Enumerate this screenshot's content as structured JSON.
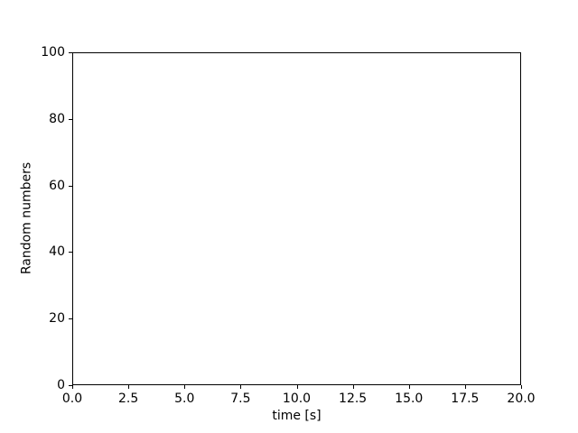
{
  "colors": {
    "background": "#ffffff",
    "spine": "#000000",
    "text": "#000000"
  },
  "chart_data": {
    "type": "line",
    "title": "",
    "xlabel": "time [s]",
    "ylabel": "Random numbers",
    "xlim": [
      0,
      20
    ],
    "ylim": [
      0,
      100
    ],
    "xticks": [
      0,
      2.5,
      5,
      7.5,
      10,
      12.5,
      15,
      17.5,
      20
    ],
    "xtick_labels": [
      "0.0",
      "2.5",
      "5.0",
      "7.5",
      "10.0",
      "12.5",
      "15.0",
      "17.5",
      "20.0"
    ],
    "yticks": [
      0,
      20,
      40,
      60,
      80,
      100
    ],
    "ytick_labels": [
      "0",
      "20",
      "40",
      "60",
      "80",
      "100"
    ],
    "series": [],
    "grid": false,
    "legend": null
  }
}
